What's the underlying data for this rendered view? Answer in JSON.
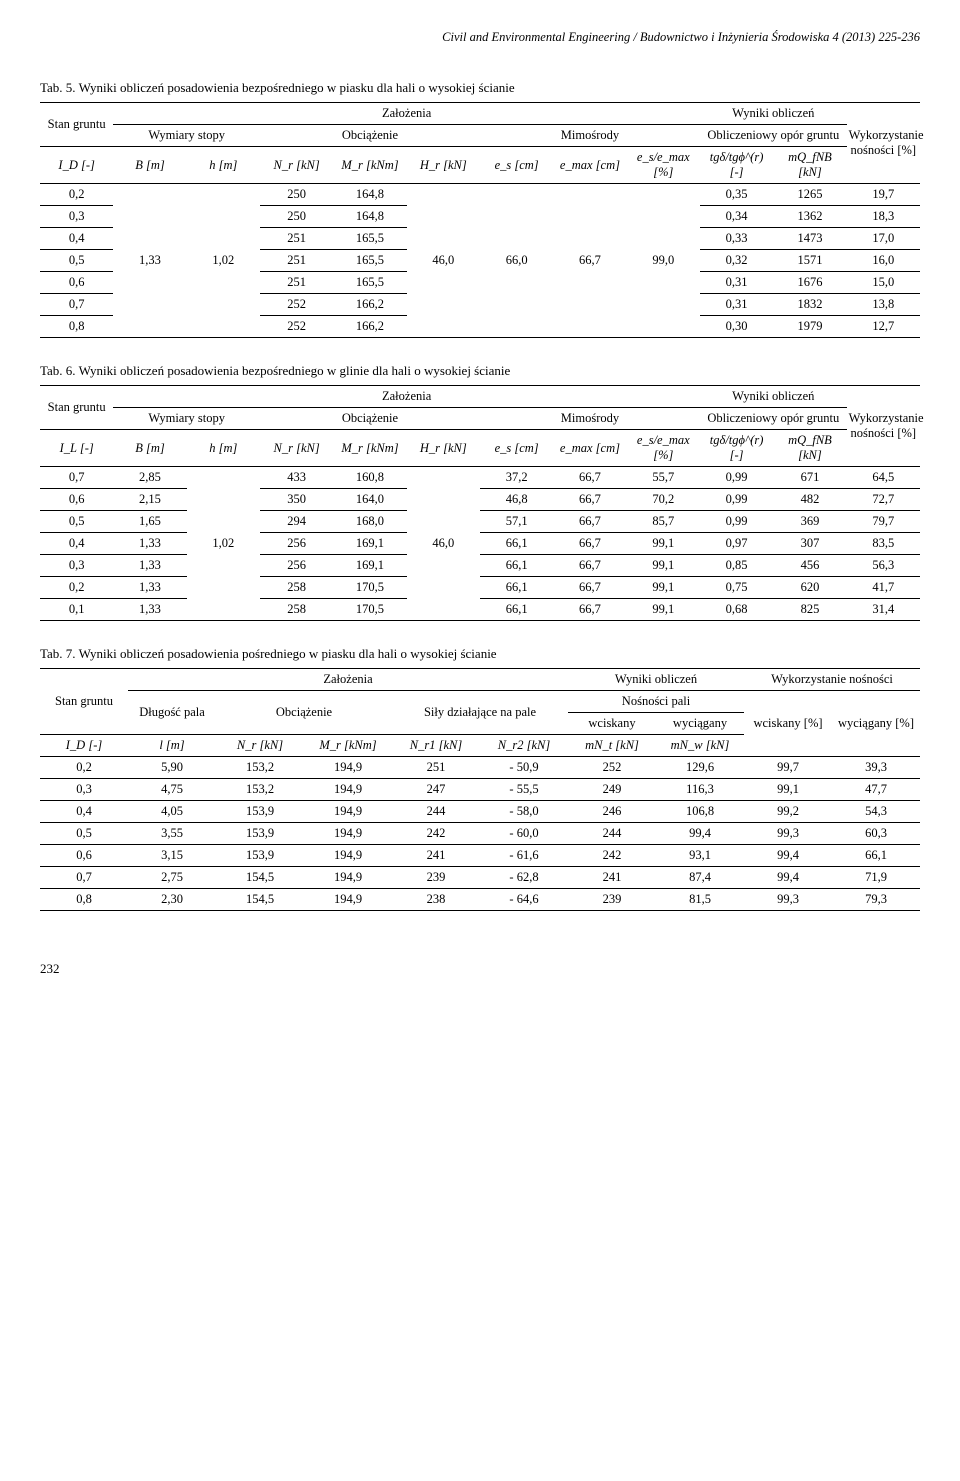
{
  "journal_header": "Civil and Environmental Engineering / Budownictwo i Inżynieria Środowiska  4 (2013) 225-236",
  "page_number": "232",
  "table5": {
    "caption": "Tab. 5. Wyniki obliczeń posadowienia bezpośredniego w piasku dla hali o wysokiej ścianie",
    "h_stan": "Stan gruntu",
    "h_zalozenia": "Założenia",
    "h_wyniki": "Wyniki obliczeń",
    "h_wymiary": "Wymiary stopy",
    "h_obciazenie": "Obciążenie",
    "h_mimosrody": "Mimośrody",
    "h_opor": "Obliczeniowy opór gruntu",
    "h_wykorz": "Wykorzystanie nośności [%]",
    "c0": "I_D [-]",
    "c1": "B [m]",
    "c2": "h [m]",
    "c3": "N_r [kN]",
    "c4": "M_r [kNm]",
    "c5": "H_r [kN]",
    "c6": "e_s [cm]",
    "c7": "e_max [cm]",
    "c8": "e_s/e_max [%]",
    "c9": "tgδ/tgϕ^(r) [-]",
    "c10": "mQ_fNB [kN]",
    "rows": [
      [
        "0,2",
        "",
        "",
        "250",
        "164,8",
        "",
        "",
        "",
        "",
        "0,35",
        "1265",
        "19,7"
      ],
      [
        "0,3",
        "",
        "",
        "250",
        "164,8",
        "",
        "",
        "",
        "",
        "0,34",
        "1362",
        "18,3"
      ],
      [
        "0,4",
        "",
        "",
        "251",
        "165,5",
        "",
        "",
        "",
        "",
        "0,33",
        "1473",
        "17,0"
      ],
      [
        "0,5",
        "1,33",
        "1,02",
        "251",
        "165,5",
        "46,0",
        "66,0",
        "66,7",
        "99,0",
        "0,32",
        "1571",
        "16,0"
      ],
      [
        "0,6",
        "",
        "",
        "251",
        "165,5",
        "",
        "",
        "",
        "",
        "0,31",
        "1676",
        "15,0"
      ],
      [
        "0,7",
        "",
        "",
        "252",
        "166,2",
        "",
        "",
        "",
        "",
        "0,31",
        "1832",
        "13,8"
      ],
      [
        "0,8",
        "",
        "",
        "252",
        "166,2",
        "",
        "",
        "",
        "",
        "0,30",
        "1979",
        "12,7"
      ]
    ]
  },
  "table6": {
    "caption": "Tab. 6. Wyniki obliczeń posadowienia bezpośredniego w glinie dla hali o wysokiej ścianie",
    "h_stan": "Stan gruntu",
    "h_zalozenia": "Założenia",
    "h_wyniki": "Wyniki obliczeń",
    "h_wymiary": "Wymiary stopy",
    "h_obciazenie": "Obciążenie",
    "h_mimosrody": "Mimośrody",
    "h_opor": "Obliczeniowy opór gruntu",
    "h_wykorz": "Wykorzystanie nośności [%]",
    "c0": "I_L [-]",
    "c1": "B [m]",
    "c2": "h [m]",
    "c3": "N_r [kN]",
    "c4": "M_r [kNm]",
    "c5": "H_r [kN]",
    "c6": "e_s [cm]",
    "c7": "e_max [cm]",
    "c8": "e_s/e_max [%]",
    "c9": "tgδ/tgϕ^(r) [-]",
    "c10": "mQ_fNB [kN]",
    "rows": [
      [
        "0,7",
        "2,85",
        "",
        "433",
        "160,8",
        "",
        "37,2",
        "66,7",
        "55,7",
        "0,99",
        "671",
        "64,5"
      ],
      [
        "0,6",
        "2,15",
        "",
        "350",
        "164,0",
        "",
        "46,8",
        "66,7",
        "70,2",
        "0,99",
        "482",
        "72,7"
      ],
      [
        "0,5",
        "1,65",
        "",
        "294",
        "168,0",
        "",
        "57,1",
        "66,7",
        "85,7",
        "0,99",
        "369",
        "79,7"
      ],
      [
        "0,4",
        "1,33",
        "1,02",
        "256",
        "169,1",
        "46,0",
        "66,1",
        "66,7",
        "99,1",
        "0,97",
        "307",
        "83,5"
      ],
      [
        "0,3",
        "1,33",
        "",
        "256",
        "169,1",
        "",
        "66,1",
        "66,7",
        "99,1",
        "0,85",
        "456",
        "56,3"
      ],
      [
        "0,2",
        "1,33",
        "",
        "258",
        "170,5",
        "",
        "66,1",
        "66,7",
        "99,1",
        "0,75",
        "620",
        "41,7"
      ],
      [
        "0,1",
        "1,33",
        "",
        "258",
        "170,5",
        "",
        "66,1",
        "66,7",
        "99,1",
        "0,68",
        "825",
        "31,4"
      ]
    ]
  },
  "table7": {
    "caption": "Tab. 7. Wyniki obliczeń posadowienia pośredniego w piasku dla hali o wysokiej ścianie",
    "h_stan": "Stan gruntu",
    "h_zalozenia": "Założenia",
    "h_wyniki": "Wyniki obliczeń",
    "h_wykorz": "Wykorzystanie nośności",
    "h_dlugosc": "Długość pala",
    "h_obciazenie": "Obciążenie",
    "h_sily": "Siły działające na pale",
    "h_nosnosci": "Nośności pali",
    "h_wciskany": "wciskany",
    "h_wyciagany": "wyciągany",
    "h_wciskany_pct": "wciskany [%]",
    "h_wyciagany_pct": "wyciągany [%]",
    "c0": "I_D [-]",
    "c1": "l [m]",
    "c2": "N_r [kN]",
    "c3": "M_r [kNm]",
    "c4": "N_r1 [kN]",
    "c5": "N_r2 [kN]",
    "c6": "mN_t [kN]",
    "c7": "mN_w [kN]",
    "rows": [
      [
        "0,2",
        "5,90",
        "153,2",
        "194,9",
        "251",
        "- 50,9",
        "252",
        "129,6",
        "99,7",
        "39,3"
      ],
      [
        "0,3",
        "4,75",
        "153,2",
        "194,9",
        "247",
        "- 55,5",
        "249",
        "116,3",
        "99,1",
        "47,7"
      ],
      [
        "0,4",
        "4,05",
        "153,9",
        "194,9",
        "244",
        "- 58,0",
        "246",
        "106,8",
        "99,2",
        "54,3"
      ],
      [
        "0,5",
        "3,55",
        "153,9",
        "194,9",
        "242",
        "- 60,0",
        "244",
        "99,4",
        "99,3",
        "60,3"
      ],
      [
        "0,6",
        "3,15",
        "153,9",
        "194,9",
        "241",
        "- 61,6",
        "242",
        "93,1",
        "99,4",
        "66,1"
      ],
      [
        "0,7",
        "2,75",
        "154,5",
        "194,9",
        "239",
        "- 62,8",
        "241",
        "87,4",
        "99,4",
        "71,9"
      ],
      [
        "0,8",
        "2,30",
        "154,5",
        "194,9",
        "238",
        "- 64,6",
        "239",
        "81,5",
        "99,3",
        "79,3"
      ]
    ]
  }
}
